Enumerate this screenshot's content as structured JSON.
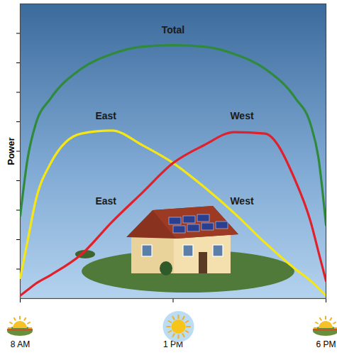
{
  "chart_data": {
    "type": "line",
    "ylabel": "Power",
    "x": [
      8,
      8.25,
      8.5,
      9,
      10,
      11,
      12,
      13,
      14,
      15,
      16,
      17,
      17.5,
      17.75,
      18
    ],
    "series": [
      {
        "name": "Total",
        "color": "#2f8a3c",
        "values": [
          2.8,
          4.8,
          5.9,
          6.8,
          7.8,
          8.3,
          8.55,
          8.6,
          8.55,
          8.3,
          7.8,
          6.8,
          5.9,
          4.8,
          2.5
        ]
      },
      {
        "name": "East",
        "color": "#f5e616",
        "values": [
          0.7,
          2.0,
          3.3,
          4.6,
          5.6,
          5.7,
          5.2,
          4.6,
          3.8,
          2.9,
          1.9,
          1.0,
          0.6,
          0.35,
          0.1
        ]
      },
      {
        "name": "West",
        "color": "#e0202a",
        "values": [
          0.1,
          0.3,
          0.5,
          0.8,
          1.5,
          2.6,
          3.6,
          4.6,
          5.2,
          5.65,
          5.6,
          4.0,
          2.6,
          1.6,
          0.6
        ]
      }
    ],
    "xlim": [
      8,
      18
    ],
    "ylim": [
      0,
      10
    ],
    "xticks": [
      {
        "value": 8,
        "label": "8 AM"
      },
      {
        "value": 13,
        "label": "1 PM"
      },
      {
        "value": 18,
        "label": "6 PM"
      }
    ],
    "yticks": [
      1,
      2,
      3,
      4,
      5,
      6,
      7,
      8,
      9
    ],
    "tick_labels": "x",
    "annotations": [
      {
        "text": "Total",
        "x": 13,
        "y": 9.1
      },
      {
        "text": "East",
        "x": 10.8,
        "y": 6.2
      },
      {
        "text": "West",
        "x": 15.25,
        "y": 6.2
      },
      {
        "text": "East",
        "x": 10.8,
        "y": 3.3
      },
      {
        "text": "West",
        "x": 15.25,
        "y": 3.3
      }
    ]
  }
}
